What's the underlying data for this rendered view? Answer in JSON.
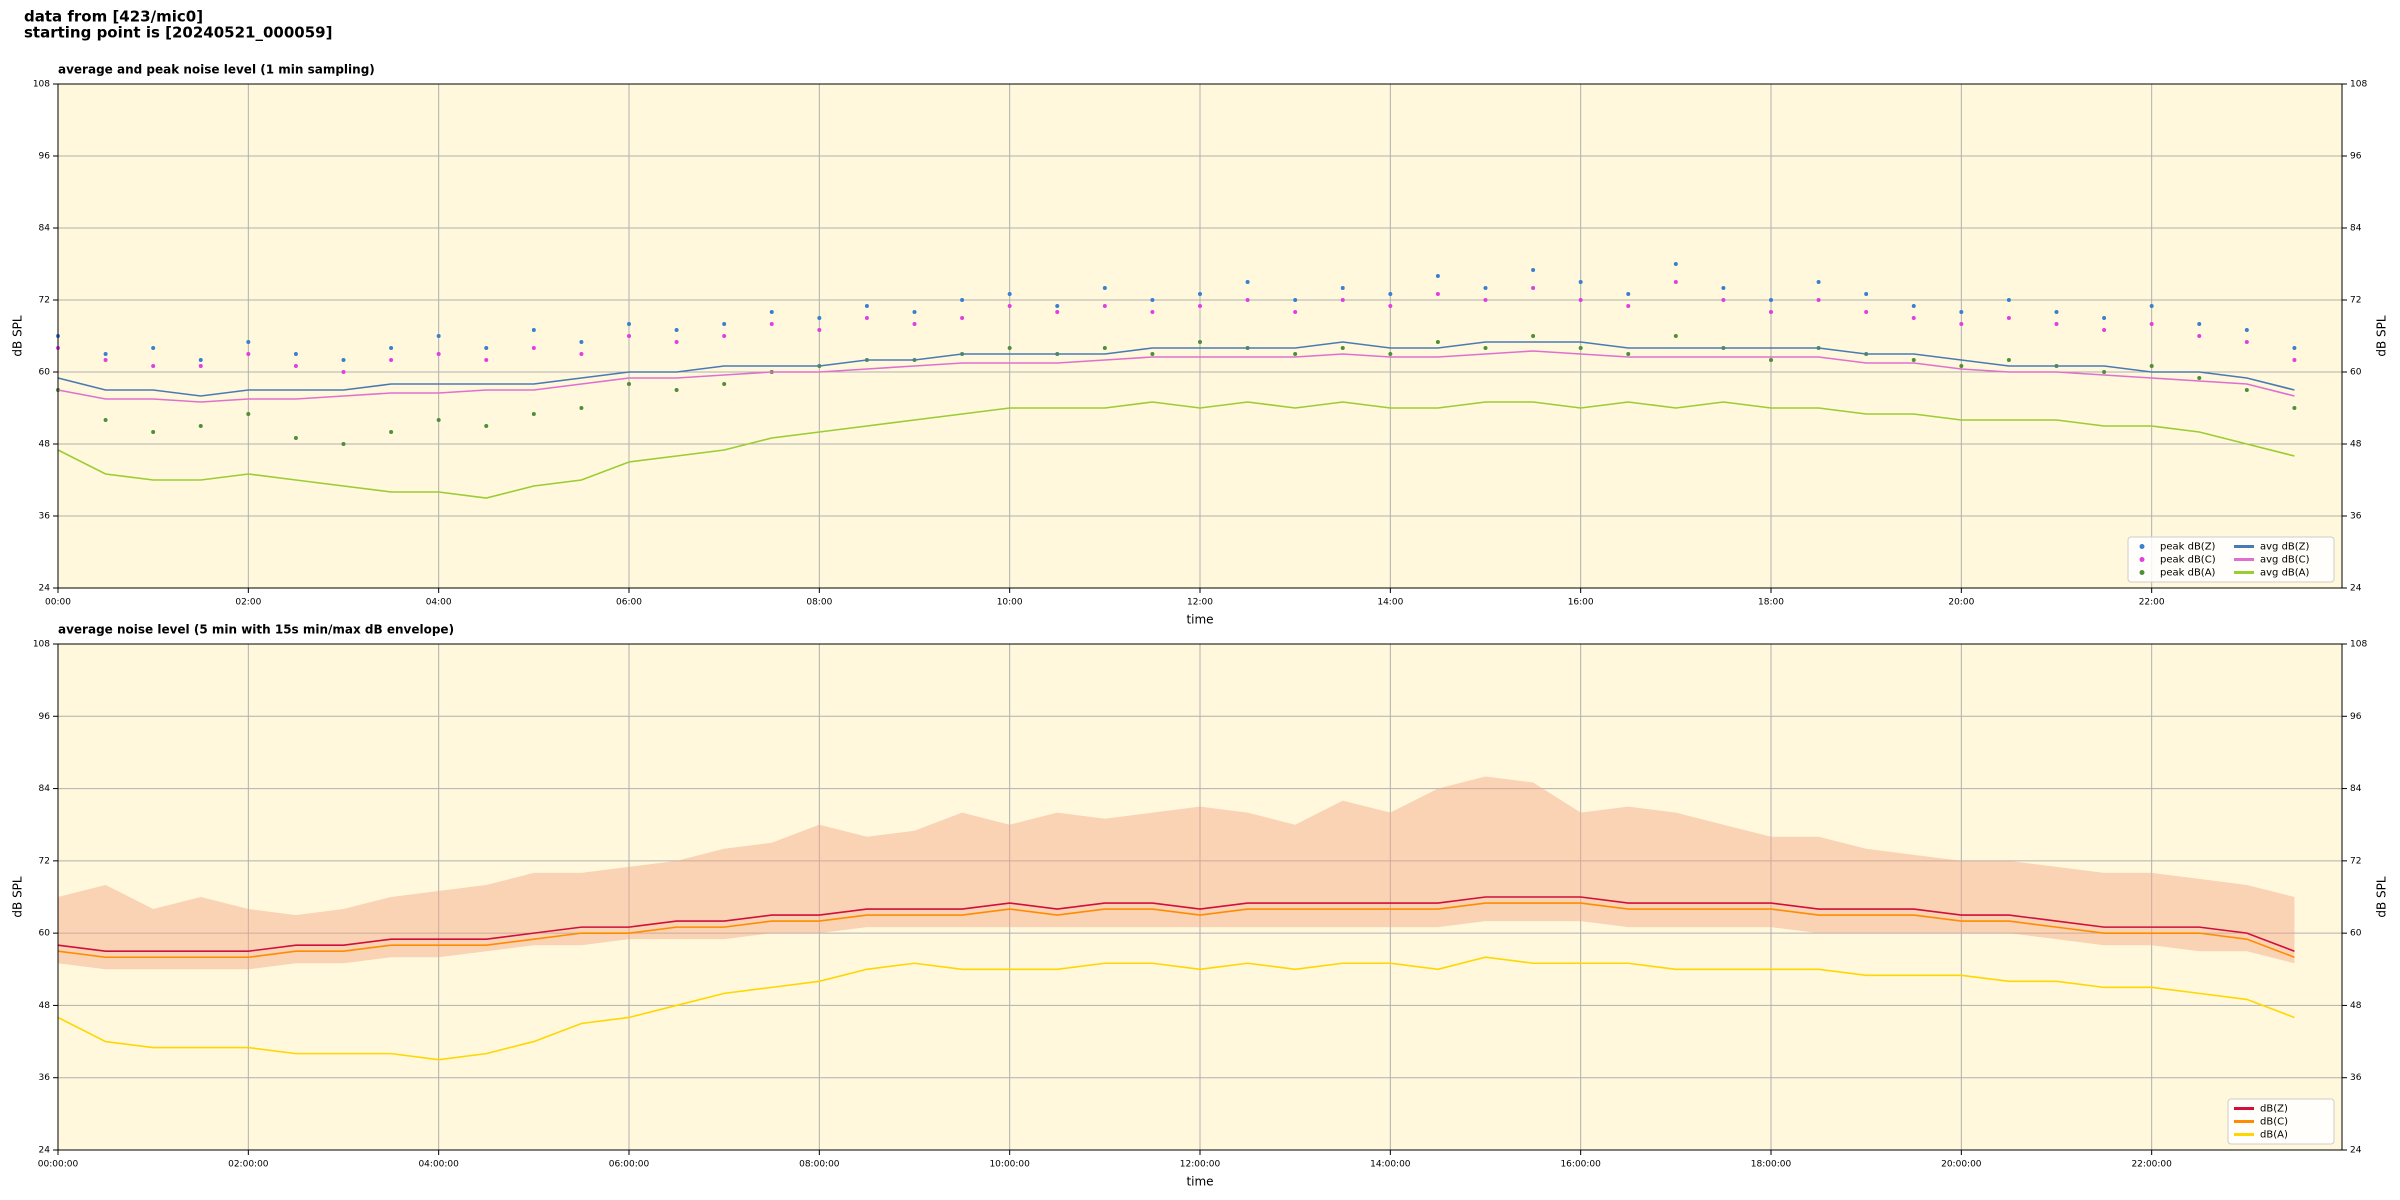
{
  "header": {
    "line1": "data from [423/mic0]",
    "line2": "starting point is [20240521_000059]"
  },
  "chart_data": [
    {
      "type": "line",
      "title": "average and peak noise level (1 min sampling)",
      "xlabel": "time",
      "ylabel": "dB SPL",
      "x": [
        0,
        0.5,
        1,
        1.5,
        2,
        2.5,
        3,
        3.5,
        4,
        4.5,
        5,
        5.5,
        6,
        6.5,
        7,
        7.5,
        8,
        8.5,
        9,
        9.5,
        10,
        10.5,
        11,
        11.5,
        12,
        12.5,
        13,
        13.5,
        14,
        14.5,
        15,
        15.5,
        16,
        16.5,
        17,
        17.5,
        18,
        18.5,
        19,
        19.5,
        20,
        20.5,
        21,
        21.5,
        22,
        22.5,
        23,
        23.5
      ],
      "xlim": [
        0,
        24
      ],
      "xticks": [
        {
          "value": 0,
          "label": "00:00"
        },
        {
          "value": 2,
          "label": "02:00"
        },
        {
          "value": 4,
          "label": "04:00"
        },
        {
          "value": 6,
          "label": "06:00"
        },
        {
          "value": 8,
          "label": "08:00"
        },
        {
          "value": 10,
          "label": "10:00"
        },
        {
          "value": 12,
          "label": "12:00"
        },
        {
          "value": 14,
          "label": "14:00"
        },
        {
          "value": 16,
          "label": "16:00"
        },
        {
          "value": 18,
          "label": "18:00"
        },
        {
          "value": 20,
          "label": "20:00"
        },
        {
          "value": 22,
          "label": "22:00"
        }
      ],
      "ylim": [
        24,
        108
      ],
      "yticks": [
        24,
        36,
        48,
        60,
        72,
        84,
        96,
        108
      ],
      "grid": true,
      "legend": {
        "loc": "lower right",
        "ncol": 2
      },
      "series": [
        {
          "name": "peak dB(Z)",
          "style": "dots",
          "color": "#3a7fd0",
          "values": [
            66,
            63,
            64,
            62,
            65,
            63,
            62,
            64,
            66,
            64,
            67,
            65,
            68,
            67,
            68,
            70,
            69,
            71,
            70,
            72,
            73,
            71,
            74,
            72,
            73,
            75,
            72,
            74,
            73,
            76,
            74,
            77,
            75,
            73,
            78,
            74,
            72,
            75,
            73,
            71,
            70,
            72,
            70,
            69,
            71,
            68,
            67,
            64
          ]
        },
        {
          "name": "peak dB(C)",
          "style": "dots",
          "color": "#e040e0",
          "values": [
            64,
            62,
            61,
            61,
            63,
            61,
            60,
            62,
            63,
            62,
            64,
            63,
            66,
            65,
            66,
            68,
            67,
            69,
            68,
            69,
            71,
            70,
            71,
            70,
            71,
            72,
            70,
            72,
            71,
            73,
            72,
            74,
            72,
            71,
            75,
            72,
            70,
            72,
            70,
            69,
            68,
            69,
            68,
            67,
            68,
            66,
            65,
            62
          ]
        },
        {
          "name": "peak dB(A)",
          "style": "dots",
          "color": "#4f8f3a",
          "values": [
            57,
            52,
            50,
            51,
            53,
            49,
            48,
            50,
            52,
            51,
            53,
            54,
            58,
            57,
            58,
            60,
            61,
            62,
            62,
            63,
            64,
            63,
            64,
            63,
            65,
            64,
            63,
            64,
            63,
            65,
            64,
            66,
            64,
            63,
            66,
            64,
            62,
            64,
            63,
            62,
            61,
            62,
            61,
            60,
            61,
            59,
            57,
            54
          ]
        },
        {
          "name": "avg dB(Z)",
          "style": "line",
          "color": "#4a7ab4",
          "values": [
            59,
            57,
            57,
            56,
            57,
            57,
            57,
            58,
            58,
            58,
            58,
            59,
            60,
            60,
            61,
            61,
            61,
            62,
            62,
            63,
            63,
            63,
            63,
            64,
            64,
            64,
            64,
            65,
            64,
            64,
            65,
            65,
            65,
            64,
            64,
            64,
            64,
            64,
            63,
            63,
            62,
            61,
            61,
            61,
            60,
            60,
            59,
            57
          ]
        },
        {
          "name": "avg dB(C)",
          "style": "line",
          "color": "#e070d0",
          "values": [
            57,
            55.5,
            55.5,
            55,
            55.5,
            55.5,
            56,
            56.5,
            56.5,
            57,
            57,
            58,
            59,
            59,
            59.5,
            60,
            60,
            60.5,
            61,
            61.5,
            61.5,
            61.5,
            62,
            62.5,
            62.5,
            62.5,
            62.5,
            63,
            62.5,
            62.5,
            63,
            63.5,
            63,
            62.5,
            62.5,
            62.5,
            62.5,
            62.5,
            61.5,
            61.5,
            60.5,
            60,
            60,
            59.5,
            59,
            58.5,
            58,
            56
          ]
        },
        {
          "name": "avg dB(A)",
          "style": "line",
          "color": "#9acd32",
          "values": [
            47,
            43,
            42,
            42,
            43,
            42,
            41,
            40,
            40,
            39,
            41,
            42,
            45,
            46,
            47,
            49,
            50,
            51,
            52,
            53,
            54,
            54,
            54,
            55,
            54,
            55,
            54,
            55,
            54,
            54,
            55,
            55,
            54,
            55,
            54,
            55,
            54,
            54,
            53,
            53,
            52,
            52,
            52,
            51,
            51,
            50,
            48,
            46
          ]
        }
      ]
    },
    {
      "type": "line",
      "title": "average noise level (5 min with 15s min/max dB envelope)",
      "xlabel": "time",
      "ylabel": "dB SPL",
      "x": [
        0,
        0.5,
        1,
        1.5,
        2,
        2.5,
        3,
        3.5,
        4,
        4.5,
        5,
        5.5,
        6,
        6.5,
        7,
        7.5,
        8,
        8.5,
        9,
        9.5,
        10,
        10.5,
        11,
        11.5,
        12,
        12.5,
        13,
        13.5,
        14,
        14.5,
        15,
        15.5,
        16,
        16.5,
        17,
        17.5,
        18,
        18.5,
        19,
        19.5,
        20,
        20.5,
        21,
        21.5,
        22,
        22.5,
        23,
        23.5
      ],
      "xlim": [
        0,
        24
      ],
      "xticks": [
        {
          "value": 0,
          "label": "00:00:00"
        },
        {
          "value": 2,
          "label": "02:00:00"
        },
        {
          "value": 4,
          "label": "04:00:00"
        },
        {
          "value": 6,
          "label": "06:00:00"
        },
        {
          "value": 8,
          "label": "08:00:00"
        },
        {
          "value": 10,
          "label": "10:00:00"
        },
        {
          "value": 12,
          "label": "12:00:00"
        },
        {
          "value": 14,
          "label": "14:00:00"
        },
        {
          "value": 16,
          "label": "16:00:00"
        },
        {
          "value": 18,
          "label": "18:00:00"
        },
        {
          "value": 20,
          "label": "20:00:00"
        },
        {
          "value": 22,
          "label": "22:00:00"
        }
      ],
      "ylim": [
        24,
        108
      ],
      "yticks": [
        24,
        36,
        48,
        60,
        72,
        84,
        96,
        108
      ],
      "grid": true,
      "legend": {
        "loc": "lower right",
        "ncol": 1
      },
      "envelope": {
        "color": "#f4a582",
        "low": [
          55,
          54,
          54,
          54,
          54,
          55,
          55,
          56,
          56,
          57,
          58,
          58,
          59,
          59,
          59,
          60,
          60,
          61,
          61,
          61,
          61,
          61,
          61,
          61,
          61,
          61,
          61,
          61,
          61,
          61,
          62,
          62,
          62,
          61,
          61,
          61,
          61,
          60,
          60,
          60,
          60,
          60,
          59,
          58,
          58,
          57,
          57,
          55
        ],
        "high": [
          66,
          68,
          64,
          66,
          64,
          63,
          64,
          66,
          67,
          68,
          70,
          70,
          71,
          72,
          74,
          75,
          78,
          76,
          77,
          80,
          78,
          80,
          79,
          80,
          81,
          80,
          78,
          82,
          80,
          84,
          86,
          85,
          80,
          81,
          80,
          78,
          76,
          76,
          74,
          73,
          72,
          72,
          71,
          70,
          70,
          69,
          68,
          66
        ]
      },
      "series": [
        {
          "name": "dB(Z)",
          "style": "line",
          "color": "#d0103a",
          "values": [
            58,
            57,
            57,
            57,
            57,
            58,
            58,
            59,
            59,
            59,
            60,
            61,
            61,
            62,
            62,
            63,
            63,
            64,
            64,
            64,
            65,
            64,
            65,
            65,
            64,
            65,
            65,
            65,
            65,
            65,
            66,
            66,
            66,
            65,
            65,
            65,
            65,
            64,
            64,
            64,
            63,
            63,
            62,
            61,
            61,
            61,
            60,
            57
          ]
        },
        {
          "name": "dB(C)",
          "style": "line",
          "color": "#ff8c00",
          "values": [
            57,
            56,
            56,
            56,
            56,
            57,
            57,
            58,
            58,
            58,
            59,
            60,
            60,
            61,
            61,
            62,
            62,
            63,
            63,
            63,
            64,
            63,
            64,
            64,
            63,
            64,
            64,
            64,
            64,
            64,
            65,
            65,
            65,
            64,
            64,
            64,
            64,
            63,
            63,
            63,
            62,
            62,
            61,
            60,
            60,
            60,
            59,
            56
          ]
        },
        {
          "name": "dB(A)",
          "style": "line",
          "color": "#ffd700",
          "values": [
            46,
            42,
            41,
            41,
            41,
            40,
            40,
            40,
            39,
            40,
            42,
            45,
            46,
            48,
            50,
            51,
            52,
            54,
            55,
            54,
            54,
            54,
            55,
            55,
            54,
            55,
            54,
            55,
            55,
            54,
            56,
            55,
            55,
            55,
            54,
            54,
            54,
            54,
            53,
            53,
            53,
            52,
            52,
            51,
            51,
            50,
            49,
            46
          ]
        }
      ]
    }
  ]
}
